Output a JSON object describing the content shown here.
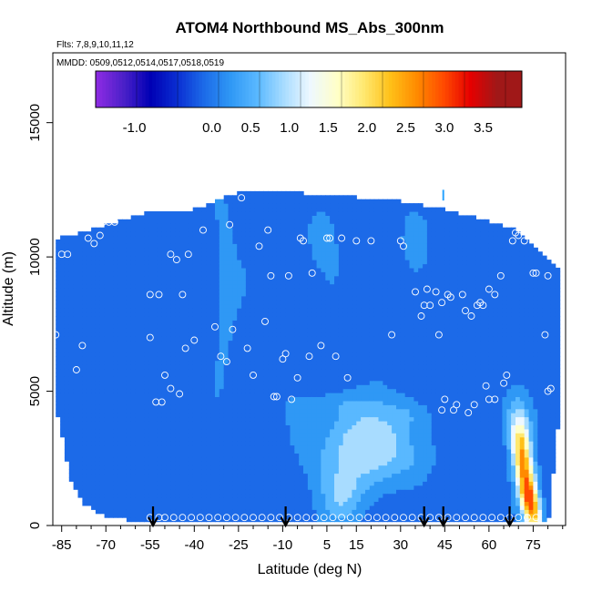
{
  "chart_data": {
    "type": "heatmap",
    "title": "ATOM4 Northbound MS_Abs_300nm",
    "flights_label": "Flts: 7,8,9,10,11,12",
    "mmdd_label": "MMDD: 0509,0512,0514,0517,0518,0519",
    "xlabel": "Latitude (deg N)",
    "ylabel": "Altitude (m)",
    "xlim": [
      -88,
      86
    ],
    "ylim": [
      0,
      17600
    ],
    "x_ticks": [
      -85,
      -70,
      -55,
      -40,
      -25,
      -10,
      5,
      15,
      30,
      45,
      60,
      75
    ],
    "x_tick_labels": [
      "-85",
      "-70",
      "-55",
      "-40",
      "-25",
      "-10",
      "5",
      "15",
      "30",
      "45",
      "60",
      "75"
    ],
    "x_minor_ticks": [
      -80,
      -75,
      -65,
      -60,
      -50,
      -45,
      -35,
      -30,
      -20,
      -15,
      -5,
      0,
      10,
      20,
      25,
      35,
      40,
      50,
      55,
      65,
      70,
      80,
      85
    ],
    "y_ticks": [
      0,
      5000,
      10000,
      15000
    ],
    "y_tick_labels": [
      "0",
      "5000",
      "10000",
      "15000"
    ],
    "colorbar": {
      "range": [
        -1.5,
        4.0
      ],
      "tick_values": [
        -1.0,
        0.0,
        0.5,
        1.0,
        1.5,
        2.0,
        2.5,
        3.0,
        3.5
      ],
      "tick_labels": [
        "-1.0",
        "0.0",
        "0.5",
        "1.0",
        "1.5",
        "2.0",
        "2.5",
        "3.0",
        "3.5"
      ],
      "colors": [
        "#8b2be2",
        "#4a20c8",
        "#0000b4",
        "#0a2ed2",
        "#1c6ae8",
        "#2f98f5",
        "#59b8ff",
        "#a8dcff",
        "#eef8ff",
        "#ffffc8",
        "#ffe870",
        "#ffc018",
        "#ff8a00",
        "#ff4a00",
        "#e60000",
        "#a01818"
      ]
    },
    "arrows_lat": [
      -54,
      -9,
      38,
      44.5,
      67
    ],
    "profile_top": [
      {
        "lat": -87,
        "alt": 10600
      },
      {
        "lat": -70,
        "alt": 11100
      },
      {
        "lat": -56,
        "alt": 11600
      },
      {
        "lat": -40,
        "alt": 11700
      },
      {
        "lat": -26,
        "alt": 12300
      },
      {
        "lat": -10,
        "alt": 12350
      },
      {
        "lat": 5,
        "alt": 12250
      },
      {
        "lat": 30,
        "alt": 12000
      },
      {
        "lat": 45,
        "alt": 11700
      },
      {
        "lat": 55,
        "alt": 11400
      },
      {
        "lat": 62,
        "alt": 11200
      },
      {
        "lat": 68,
        "alt": 11000
      },
      {
        "lat": 74,
        "alt": 10500
      },
      {
        "lat": 80,
        "alt": 9800
      },
      {
        "lat": 84,
        "alt": 9400
      }
    ],
    "profile_bottom": [
      {
        "lat": -87,
        "alt": 4600
      },
      {
        "lat": -82,
        "alt": 1800
      },
      {
        "lat": -78,
        "alt": 900
      },
      {
        "lat": -70,
        "alt": 400
      },
      {
        "lat": -60,
        "alt": 250
      },
      {
        "lat": 80,
        "alt": 150
      },
      {
        "lat": 84,
        "alt": 4500
      }
    ],
    "plumes": [
      {
        "lat": 20,
        "alt": 3400,
        "sx": 11,
        "sy": 700,
        "v": 0.85,
        "slope": 0
      },
      {
        "lat": 14,
        "alt": 2200,
        "sx": 9,
        "sy": 800,
        "v": 0.7,
        "slope": -0.0012
      },
      {
        "lat": 10,
        "alt": 1000,
        "sx": 5,
        "sy": 650,
        "v": 0.65,
        "slope": 0
      },
      {
        "lat": 12,
        "alt": 4500,
        "sx": 8,
        "sy": 400,
        "v": 0.4,
        "slope": 0
      },
      {
        "lat": 30,
        "alt": 2400,
        "sx": 7,
        "sy": 500,
        "v": 0.35,
        "slope": 0
      },
      {
        "lat": 33,
        "alt": 4200,
        "sx": 5,
        "sy": 400,
        "v": 0.3,
        "slope": 0
      },
      {
        "lat": 74,
        "alt": 800,
        "sx": 2.2,
        "sy": 750,
        "v": 2.6,
        "slope": -0.0018
      },
      {
        "lat": 72,
        "alt": 2200,
        "sx": 2.2,
        "sy": 900,
        "v": 1.9,
        "slope": -0.0015
      },
      {
        "lat": 71,
        "alt": 3300,
        "sx": 2.5,
        "sy": 700,
        "v": 1.2,
        "slope": 0
      },
      {
        "lat": 69,
        "alt": 4300,
        "sx": 3,
        "sy": 700,
        "v": 0.5,
        "slope": 0
      },
      {
        "lat": -30,
        "alt": 8500,
        "sx": 3,
        "sy": 4000,
        "v": 0.15,
        "slope": 0
      },
      {
        "lat": 35,
        "alt": 10800,
        "sx": 2.5,
        "sy": 600,
        "v": 0.4,
        "slope": 0
      },
      {
        "lat": 3,
        "alt": 10800,
        "sx": 3,
        "sy": 700,
        "v": 0.25,
        "slope": 0
      },
      {
        "lat": 52,
        "alt": 8000,
        "sx": 10,
        "sy": 1500,
        "v": -0.15,
        "slope": 0
      },
      {
        "lat": -85,
        "alt": 9000,
        "sx": 6,
        "sy": 2000,
        "v": -0.1,
        "slope": 0
      }
    ],
    "samples": [
      [
        -87,
        7100
      ],
      [
        -85,
        10100
      ],
      [
        -83,
        10100
      ],
      [
        -80,
        5800
      ],
      [
        -78,
        6700
      ],
      [
        -76,
        10700
      ],
      [
        -74,
        10500
      ],
      [
        -72,
        10800
      ],
      [
        -71,
        11300
      ],
      [
        -69,
        11300
      ],
      [
        -67,
        11300
      ],
      [
        -65,
        11600
      ],
      [
        -55,
        7000
      ],
      [
        -55,
        8600
      ],
      [
        -53,
        4600
      ],
      [
        -52,
        8600
      ],
      [
        -51,
        4600
      ],
      [
        -50,
        5600
      ],
      [
        -48,
        5100
      ],
      [
        -48,
        10100
      ],
      [
        -46,
        9900
      ],
      [
        -45,
        4900
      ],
      [
        -44,
        8600
      ],
      [
        -43,
        6600
      ],
      [
        -42,
        10100
      ],
      [
        -40,
        6900
      ],
      [
        -37,
        11000
      ],
      [
        -33,
        7400
      ],
      [
        -31,
        6300
      ],
      [
        -29,
        6100
      ],
      [
        -28,
        11200
      ],
      [
        -27,
        7300
      ],
      [
        -24,
        12200
      ],
      [
        -22,
        6600
      ],
      [
        -20,
        5600
      ],
      [
        -18,
        10400
      ],
      [
        -16,
        7600
      ],
      [
        -15,
        11000
      ],
      [
        -14,
        9300
      ],
      [
        -13,
        4800
      ],
      [
        -12,
        4800
      ],
      [
        -10,
        6200
      ],
      [
        -9,
        6400
      ],
      [
        -8,
        9300
      ],
      [
        -7,
        4700
      ],
      [
        -5,
        5500
      ],
      [
        -4,
        10700
      ],
      [
        -3,
        10600
      ],
      [
        -1,
        6300
      ],
      [
        0,
        9400
      ],
      [
        3,
        6700
      ],
      [
        5,
        10700
      ],
      [
        6,
        10700
      ],
      [
        8,
        6300
      ],
      [
        10,
        10700
      ],
      [
        12,
        5500
      ],
      [
        15,
        10600
      ],
      [
        20,
        10600
      ],
      [
        27,
        7100
      ],
      [
        30,
        10600
      ],
      [
        31,
        10400
      ],
      [
        35,
        8700
      ],
      [
        37,
        7800
      ],
      [
        38,
        8200
      ],
      [
        39,
        8800
      ],
      [
        40,
        8200
      ],
      [
        42,
        8700
      ],
      [
        43,
        7100
      ],
      [
        44,
        8300
      ],
      [
        44,
        4300
      ],
      [
        45,
        4700
      ],
      [
        46,
        8600
      ],
      [
        47,
        8500
      ],
      [
        48,
        4300
      ],
      [
        49,
        4500
      ],
      [
        51,
        8600
      ],
      [
        52,
        8000
      ],
      [
        53,
        4200
      ],
      [
        54,
        7800
      ],
      [
        55,
        4500
      ],
      [
        56,
        8200
      ],
      [
        57,
        8300
      ],
      [
        58,
        8200
      ],
      [
        59,
        5200
      ],
      [
        60,
        8800
      ],
      [
        60,
        4700
      ],
      [
        62,
        8600
      ],
      [
        62,
        4700
      ],
      [
        64,
        9300
      ],
      [
        65,
        5300
      ],
      [
        66,
        5600
      ],
      [
        68,
        10600
      ],
      [
        69,
        10900
      ],
      [
        70,
        10800
      ],
      [
        72,
        10600
      ],
      [
        74,
        10900
      ],
      [
        75,
        9400
      ],
      [
        76,
        9400
      ],
      [
        79,
        7100
      ],
      [
        80,
        5000
      ],
      [
        80,
        9300
      ],
      [
        81,
        5100
      ]
    ],
    "bottom_samples": [
      -55,
      -52,
      -50,
      -47,
      -44,
      -41,
      -38,
      -35,
      -32,
      -29,
      -26,
      -23,
      -20,
      -17,
      -14,
      -11,
      -8,
      -5,
      -2,
      1,
      4,
      7,
      10,
      13,
      16,
      19,
      22,
      25,
      28,
      31,
      34,
      37,
      40,
      43,
      46,
      49,
      52,
      55,
      58,
      61,
      64,
      67,
      70,
      73,
      76
    ]
  }
}
